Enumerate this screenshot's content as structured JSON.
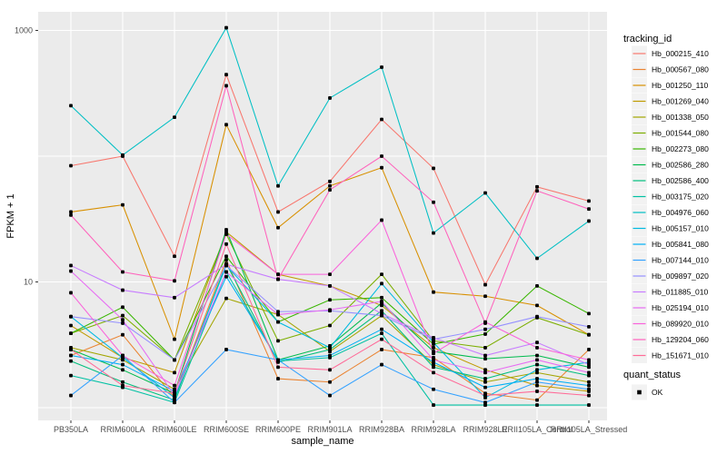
{
  "chart_data": {
    "type": "line",
    "title": "",
    "xlabel": "sample_name",
    "ylabel": "FPKM + 1",
    "y_scale": "log10",
    "ylim": [
      1,
      1400
    ],
    "y_ticks": [
      10,
      1000
    ],
    "y_tick_labels": [
      "10",
      "1000"
    ],
    "y_gridlines": [
      1,
      10,
      100,
      1000
    ],
    "grid": "on",
    "legend_position": "right",
    "panel_background": "#EBEBEB",
    "gridline_color": "#FFFFFF",
    "point_color": "#000000",
    "categories": [
      "PB350LA",
      "RRIM600LA",
      "RRIM600LE",
      "RRIM600SE",
      "RRIM600PE",
      "RRIM901LA",
      "RRIM928BA",
      "RRIM928LA",
      "RRIM928LE",
      "RRII105LA_Control",
      "RRII105LA_Stressed"
    ],
    "series": [
      {
        "name": "Hb_000215_410",
        "color": "#F8766D",
        "values": [
          84,
          100,
          16,
          445,
          36,
          63,
          196,
          80,
          9.5,
          57,
          44
        ]
      },
      {
        "name": "Hb_000567_080",
        "color": "#EA8331",
        "values": [
          2.6,
          3.8,
          1.2,
          15,
          1.7,
          1.6,
          2.9,
          2.5,
          1.3,
          1.15,
          2.9
        ]
      },
      {
        "name": "Hb_001250_110",
        "color": "#D89000",
        "values": [
          36,
          41,
          3.5,
          178,
          27,
          58,
          81,
          8.3,
          7.7,
          6.5,
          3.8
        ]
      },
      {
        "name": "Hb_001269_040",
        "color": "#C09B00",
        "values": [
          4.5,
          2.5,
          1.9,
          25,
          11.5,
          9.3,
          6.5,
          3.0,
          2.0,
          1.5,
          1.35
        ]
      },
      {
        "name": "Hb_001338_050",
        "color": "#A3A500",
        "values": [
          3.0,
          2.4,
          1.4,
          7.4,
          5.5,
          2.8,
          5.4,
          2.2,
          1.6,
          1.9,
          1.6
        ]
      },
      {
        "name": "Hb_001544_080",
        "color": "#7CAE00",
        "values": [
          3.9,
          5.4,
          2.4,
          24,
          3.4,
          4.5,
          11.5,
          3.4,
          3.0,
          5.2,
          3.8
        ]
      },
      {
        "name": "Hb_002273_080",
        "color": "#39B600",
        "values": [
          3.9,
          6.3,
          2.4,
          16,
          4.8,
          7.2,
          7.5,
          3.2,
          3.85,
          9.3,
          5.6
        ]
      },
      {
        "name": "Hb_002586_280",
        "color": "#00BB4E",
        "values": [
          2.9,
          2.0,
          1.3,
          26,
          2.4,
          3.1,
          6.8,
          2.8,
          2.45,
          2.6,
          2.1
        ]
      },
      {
        "name": "Hb_002586_400",
        "color": "#00BF7D",
        "values": [
          2.35,
          1.6,
          1.15,
          14,
          2.3,
          2.9,
          5.9,
          2.1,
          1.7,
          2.2,
          1.8
        ]
      },
      {
        "name": "Hb_003175_020",
        "color": "#00C1A3",
        "values": [
          1.8,
          1.45,
          1.1,
          12,
          2.35,
          2.5,
          3.9,
          1.05,
          1.05,
          1.05,
          1.05
        ]
      },
      {
        "name": "Hb_004976_060",
        "color": "#00BFC4",
        "values": [
          252,
          102,
          204,
          1050,
          58,
          290,
          510,
          24.5,
          51,
          15.4,
          30.5
        ]
      },
      {
        "name": "Hb_005157_010",
        "color": "#00BAE0",
        "values": [
          5.3,
          2.5,
          1.2,
          13.5,
          4.8,
          3.0,
          9.7,
          3.3,
          1.2,
          2.0,
          2.3
        ]
      },
      {
        "name": "Hb_005841_080",
        "color": "#00B0F6",
        "values": [
          2.6,
          2.2,
          1.35,
          11,
          2.4,
          2.6,
          4.2,
          2.3,
          1.45,
          1.7,
          1.5
        ]
      },
      {
        "name": "Hb_007144_010",
        "color": "#35A2FF",
        "values": [
          1.25,
          2.6,
          1.1,
          2.9,
          2.4,
          1.25,
          2.2,
          1.4,
          1.1,
          1.6,
          1.4
        ]
      },
      {
        "name": "Hb_009897_020",
        "color": "#9590FF",
        "values": [
          5.3,
          4.7,
          2.4,
          13.5,
          5.8,
          5.9,
          5.4,
          3.5,
          4.2,
          5.3,
          4.4
        ]
      },
      {
        "name": "Hb_011885_010",
        "color": "#C77CFF",
        "values": [
          13.5,
          8.6,
          7.5,
          13.8,
          10.5,
          9.3,
          5.6,
          3.6,
          2.6,
          3.3,
          2.2
        ]
      },
      {
        "name": "Hb_025194_010",
        "color": "#E76BF3",
        "values": [
          12.2,
          5.0,
          1.25,
          12,
          5.5,
          6.0,
          7.0,
          2.4,
          1.9,
          2.4,
          1.9
        ]
      },
      {
        "name": "Hb_089920_010",
        "color": "#FA62DB",
        "values": [
          8.2,
          2.6,
          1.5,
          24,
          11.5,
          11.5,
          31,
          2.7,
          4.8,
          3.0,
          2.4
        ]
      },
      {
        "name": "Hb_129204_060",
        "color": "#FF62BC",
        "values": [
          34,
          12,
          10.2,
          363,
          10.5,
          54,
          100,
          43,
          4.7,
          53,
          38
        ]
      },
      {
        "name": "Hb_151671_010",
        "color": "#FF6A98",
        "values": [
          2.9,
          1.5,
          1.3,
          20,
          2.1,
          2.0,
          3.5,
          1.9,
          1.25,
          1.35,
          1.25
        ]
      }
    ],
    "legend": {
      "tracking_title": "tracking_id",
      "quant_title": "quant_status",
      "quant_items": [
        {
          "label": "OK"
        }
      ],
      "key_background": "#F2F2F2"
    }
  }
}
